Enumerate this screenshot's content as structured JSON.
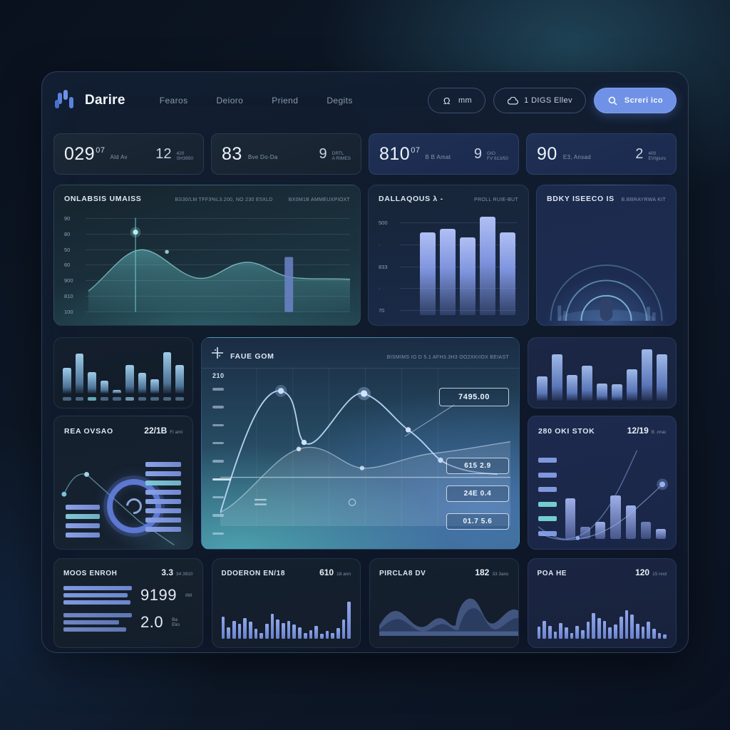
{
  "brand": {
    "name": "Darire"
  },
  "nav": {
    "items": [
      {
        "label": "Fearos"
      },
      {
        "label": "Deioro"
      },
      {
        "label": "Priend"
      },
      {
        "label": "Degits"
      }
    ]
  },
  "actions": {
    "notify": {
      "label": "mm",
      "icon": "omega-bell-icon"
    },
    "secondary": {
      "label": "1 DIGS Ellev",
      "icon": "cloud-icon"
    },
    "primary": {
      "label": "Screri ico",
      "icon": "search-icon",
      "color": "#6f92e6"
    }
  },
  "stats": [
    {
      "value": "029",
      "sup": "07",
      "label": "Ald Av",
      "alt": "12",
      "alt_line1": "420",
      "alt_line2": "SH3950"
    },
    {
      "value": "83",
      "sup": "",
      "label": "Bve Do-Da",
      "alt": "9",
      "alt_line1": "DRTL",
      "alt_line2": "A RIMES"
    },
    {
      "value": "810",
      "sup": "07",
      "label": "B B Amat",
      "alt": "9",
      "alt_line1": "GIO",
      "alt_line2": "FV 613/50"
    },
    {
      "value": "90",
      "sup": "",
      "label": "E3, Ansad",
      "alt": "2",
      "alt_line1": "400",
      "alt_line2": "EVIgiurs"
    }
  ],
  "panels": {
    "overview": {
      "title": "ONLABSIS UMAISS",
      "meta1": "BS30/LM TFF3%L3.200, NO 230 E5XLD",
      "meta2": "BX0M1B AMMEUXPIOXT",
      "y_ticks": [
        "90",
        "80",
        "50",
        "60",
        "900",
        "810",
        "100"
      ]
    },
    "mid_bars": {
      "title": "DALLAQOUS λ -",
      "meta": "PROLL RUIE-BUT",
      "y_ticks": [
        "500",
        "·",
        "833",
        "·",
        "70"
      ],
      "bars": [
        84,
        88,
        79,
        100,
        84
      ]
    },
    "arcs": {
      "title": "BDKY ISEECO IS",
      "meta": "B.BBRAYRWA KIT"
    },
    "mini_left": {
      "bars": [
        55,
        85,
        45,
        28,
        8,
        60,
        44,
        30,
        88,
        60
      ],
      "dash_count": 10
    },
    "gauge": {
      "title": "REA OVSAO",
      "value": "22/1B",
      "value_small": "Fi aml",
      "left_bars": 4,
      "right_bars": 8
    },
    "center": {
      "icon": "crosshair-icon",
      "title": "FAUE GOM",
      "meta": "BISMIMS IO D 5.1 AFH3.3H3 OO2XKIIOX BEIAST",
      "y_label": "210",
      "y_dash_count": 9,
      "chips": [
        "7495.00",
        "615 2.9",
        "24E 0.4",
        "01.7 5.6"
      ]
    },
    "mini_right": {
      "bars": [
        45,
        85,
        48,
        65,
        32,
        30,
        58,
        95,
        85
      ]
    },
    "stok": {
      "title": "280 OKI STOK",
      "value": "12/19",
      "value_small": "B .nnai",
      "tick_count": 6,
      "bars": [
        75,
        22,
        32,
        80,
        62,
        32,
        18
      ]
    }
  },
  "bottom": [
    {
      "title": "MOOS ENROH",
      "value": "3.3",
      "value_small": "34 3910",
      "rows": [
        {
          "num": "9199",
          "suffix": "IIM",
          "suffix2": ""
        },
        {
          "num": "2.0",
          "suffix": "Ba",
          "suffix2": "Elio"
        }
      ]
    },
    {
      "title": "DDOERON EN/18",
      "value": "610",
      "value_small": "18 ann",
      "bars": [
        55,
        28,
        45,
        38,
        52,
        42,
        25,
        14,
        38,
        62,
        48,
        40,
        44,
        36,
        28,
        14,
        22,
        32,
        12,
        20,
        14,
        26,
        48,
        92
      ]
    },
    {
      "title": "PIRCLA8 DV",
      "value": "182",
      "value_small": "33 3anc"
    },
    {
      "title": "POA HE",
      "value": "120",
      "value_small": "15 nnd",
      "bars": [
        30,
        45,
        32,
        18,
        40,
        28,
        14,
        32,
        22,
        42,
        65,
        52,
        45,
        28,
        35,
        55,
        72,
        60,
        38,
        30,
        42,
        25,
        15,
        10
      ]
    }
  ],
  "colors": {
    "accent": "#6f92e6",
    "teal": "#6fd0d4",
    "bar_blue": "#8fa8e8",
    "panel_border": "#2a3c5c"
  }
}
